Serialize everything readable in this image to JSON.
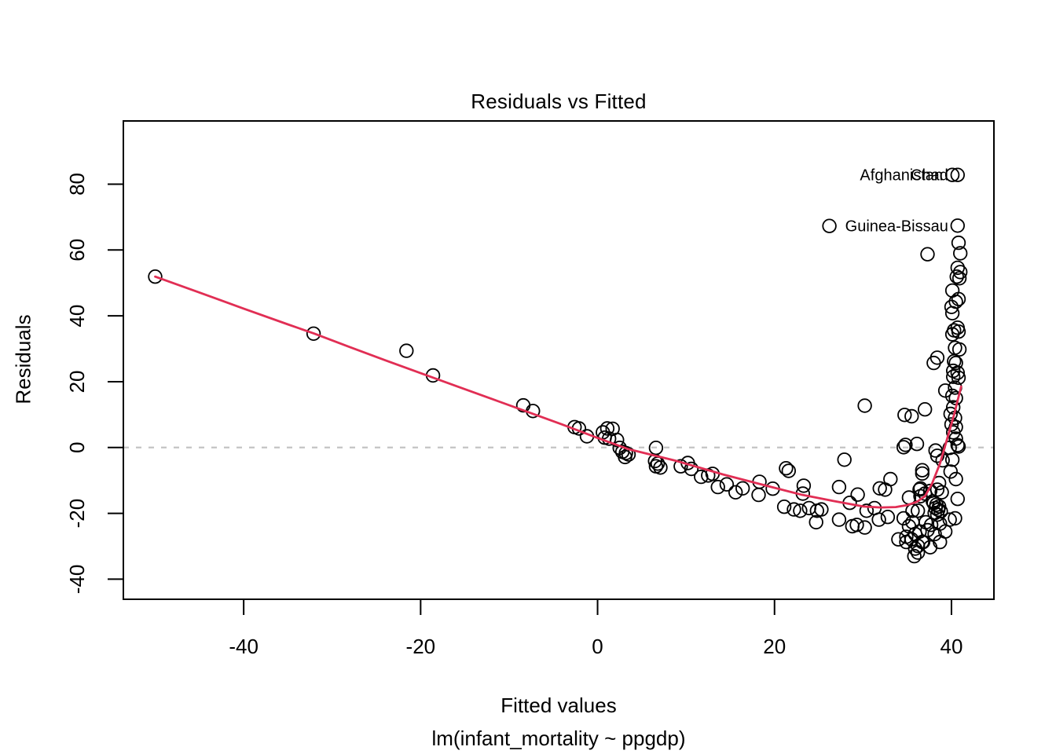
{
  "title": "Residuals vs Fitted",
  "axes": {
    "x": {
      "label": "Fitted values",
      "sublabel": "lm(infant_mortality ~ ppgdp)"
    },
    "y": {
      "label": "Residuals"
    }
  },
  "colors": {
    "point": "#000000",
    "smooth_line": "#e12e54",
    "zero_line": "#c4c4c4",
    "axis": "#000000",
    "background": "#ffffff"
  },
  "chart_data": {
    "type": "scatter",
    "title": "Residuals vs Fitted",
    "xlabel": "Fitted values",
    "ylabel": "Residuals",
    "xlim": [
      -53.6,
      44.8
    ],
    "ylim": [
      -46.1,
      99.2
    ],
    "x_ticks": [
      -40,
      -20,
      0,
      20,
      40
    ],
    "y_ticks": [
      -40,
      -20,
      0,
      20,
      40,
      60,
      80
    ],
    "grid": false,
    "zero_line_y": 0,
    "points": [
      [
        -50.0,
        51.9
      ],
      [
        -32.1,
        34.6
      ],
      [
        -21.6,
        29.4
      ],
      [
        -18.6,
        21.9
      ],
      [
        -8.4,
        12.8
      ],
      [
        -7.3,
        11.1
      ],
      [
        -2.6,
        6.2
      ],
      [
        -2.1,
        5.8
      ],
      [
        -1.2,
        3.4
      ],
      [
        0.6,
        4.6
      ],
      [
        1.1,
        5.8
      ],
      [
        1.7,
        5.7
      ],
      [
        0.8,
        3.0
      ],
      [
        1.3,
        2.7
      ],
      [
        2.2,
        2.3
      ],
      [
        2.5,
        -0.1
      ],
      [
        2.8,
        -1.3
      ],
      [
        3.2,
        -1.7
      ],
      [
        3.5,
        -2.1
      ],
      [
        3.1,
        -2.9
      ],
      [
        6.6,
        -0.1
      ],
      [
        6.5,
        -4.1
      ],
      [
        6.8,
        -4.9
      ],
      [
        6.6,
        -5.7
      ],
      [
        7.1,
        -6.1
      ],
      [
        9.4,
        -5.7
      ],
      [
        10.2,
        -4.7
      ],
      [
        10.6,
        -6.5
      ],
      [
        11.7,
        -8.9
      ],
      [
        12.5,
        -8.5
      ],
      [
        13.0,
        -8.0
      ],
      [
        13.6,
        -12.0
      ],
      [
        14.6,
        -11.2
      ],
      [
        15.6,
        -13.6
      ],
      [
        16.4,
        -12.4
      ],
      [
        18.3,
        -10.4
      ],
      [
        18.2,
        -14.4
      ],
      [
        19.8,
        -12.5
      ],
      [
        21.3,
        -6.3
      ],
      [
        21.6,
        -7.1
      ],
      [
        23.3,
        -11.6
      ],
      [
        23.2,
        -14.0
      ],
      [
        21.1,
        -18.0
      ],
      [
        22.2,
        -18.8
      ],
      [
        22.9,
        -19.2
      ],
      [
        23.9,
        -18.4
      ],
      [
        24.8,
        -19.2
      ],
      [
        24.7,
        -22.7
      ],
      [
        25.3,
        -18.8
      ],
      [
        26.2,
        67.3
      ],
      [
        27.9,
        -3.7
      ],
      [
        27.3,
        -12.0
      ],
      [
        27.3,
        -21.9
      ],
      [
        28.5,
        -16.8
      ],
      [
        29.4,
        -14.3
      ],
      [
        28.8,
        -23.9
      ],
      [
        29.3,
        -23.5
      ],
      [
        30.2,
        12.7
      ],
      [
        30.2,
        -24.3
      ],
      [
        30.4,
        -19.2
      ],
      [
        31.3,
        -18.4
      ],
      [
        31.8,
        -21.9
      ],
      [
        31.9,
        -12.4
      ],
      [
        32.5,
        -12.8
      ],
      [
        33.1,
        -9.6
      ],
      [
        32.8,
        -21.1
      ],
      [
        34.0,
        -27.9
      ],
      [
        34.9,
        -27.1
      ],
      [
        34.6,
        0.1
      ],
      [
        34.8,
        0.8
      ],
      [
        36.1,
        1.1
      ],
      [
        34.7,
        9.9
      ],
      [
        35.5,
        9.5
      ],
      [
        37.0,
        11.6
      ],
      [
        36.7,
        -6.9
      ],
      [
        36.5,
        -12.4
      ],
      [
        35.2,
        -15.2
      ],
      [
        35.6,
        -19.2
      ],
      [
        34.6,
        -21.5
      ],
      [
        35.2,
        -23.9
      ],
      [
        35.9,
        -26.3
      ],
      [
        36.2,
        -29.9
      ],
      [
        36.7,
        -28.7
      ],
      [
        37.6,
        -30.3
      ],
      [
        36.2,
        -31.9
      ],
      [
        35.8,
        -33.0
      ],
      [
        36.7,
        -7.9
      ],
      [
        38.4,
        -2.5
      ],
      [
        39.0,
        -3.9
      ],
      [
        40.1,
        -3.7
      ],
      [
        39.9,
        -7.3
      ],
      [
        40.5,
        -9.6
      ],
      [
        38.6,
        -10.8
      ],
      [
        38.4,
        -12.8
      ],
      [
        38.9,
        -13.6
      ],
      [
        36.4,
        -12.8
      ],
      [
        36.5,
        -14.8
      ],
      [
        37.0,
        -14.0
      ],
      [
        37.6,
        -13.2
      ],
      [
        40.7,
        -15.6
      ],
      [
        37.9,
        -16.4
      ],
      [
        38.0,
        -16.9
      ],
      [
        38.3,
        -17.4
      ],
      [
        38.6,
        -17.9
      ],
      [
        38.2,
        -18.4
      ],
      [
        38.5,
        -18.9
      ],
      [
        38.8,
        -19.4
      ],
      [
        38.1,
        -19.9
      ],
      [
        38.4,
        -20.4
      ],
      [
        36.2,
        -19.2
      ],
      [
        35.6,
        -22.7
      ],
      [
        37.1,
        -22.7
      ],
      [
        37.7,
        -23.5
      ],
      [
        38.7,
        -23.1
      ],
      [
        39.8,
        -21.9
      ],
      [
        40.4,
        -21.5
      ],
      [
        36.4,
        -25.5
      ],
      [
        37.3,
        -25.1
      ],
      [
        38.1,
        -26.3
      ],
      [
        39.3,
        -25.5
      ],
      [
        35.5,
        -27.9
      ],
      [
        34.9,
        -28.7
      ],
      [
        36.8,
        -28.7
      ],
      [
        38.7,
        -28.7
      ],
      [
        35.9,
        -30.7
      ],
      [
        40.1,
        82.8
      ],
      [
        40.7,
        82.8
      ],
      [
        40.7,
        67.4
      ],
      [
        40.8,
        62.2
      ],
      [
        41.0,
        59.0
      ],
      [
        37.3,
        58.7
      ],
      [
        40.7,
        54.6
      ],
      [
        41.0,
        53.3
      ],
      [
        40.6,
        51.9
      ],
      [
        40.9,
        51.4
      ],
      [
        40.1,
        47.7
      ],
      [
        40.8,
        45.1
      ],
      [
        40.5,
        44.3
      ],
      [
        40.0,
        42.7
      ],
      [
        40.1,
        40.8
      ],
      [
        40.7,
        36.4
      ],
      [
        40.3,
        35.6
      ],
      [
        40.8,
        35.2
      ],
      [
        40.1,
        34.4
      ],
      [
        40.4,
        30.3
      ],
      [
        40.9,
        29.8
      ],
      [
        38.4,
        27.3
      ],
      [
        38.0,
        25.7
      ],
      [
        40.3,
        26.2
      ],
      [
        40.5,
        25.7
      ],
      [
        40.2,
        23.3
      ],
      [
        40.7,
        22.7
      ],
      [
        40.2,
        21.5
      ],
      [
        40.8,
        21.2
      ],
      [
        40.4,
        18.2
      ],
      [
        39.3,
        17.3
      ],
      [
        40.1,
        15.7
      ],
      [
        40.5,
        15.0
      ],
      [
        40.2,
        12.2
      ],
      [
        39.9,
        10.2
      ],
      [
        40.4,
        9.0
      ],
      [
        40.0,
        7.0
      ],
      [
        40.5,
        6.2
      ],
      [
        40.2,
        4.6
      ],
      [
        40.5,
        2.7
      ],
      [
        39.8,
        -0.1
      ],
      [
        40.8,
        0.3
      ],
      [
        38.2,
        -0.9
      ],
      [
        40.7,
        0.7
      ]
    ],
    "smooth_line": [
      [
        -50,
        51.9
      ],
      [
        -45,
        47.1
      ],
      [
        -40,
        42.2
      ],
      [
        -35,
        37.4
      ],
      [
        -32,
        34.6
      ],
      [
        -28,
        30.5
      ],
      [
        -24,
        26.5
      ],
      [
        -20,
        22.6
      ],
      [
        -16,
        18.7
      ],
      [
        -12,
        14.8
      ],
      [
        -8,
        10.9
      ],
      [
        -4,
        7.0
      ],
      [
        0,
        2.9
      ],
      [
        3.5,
        -0.5
      ],
      [
        8.8,
        -4.0
      ],
      [
        14.2,
        -8.2
      ],
      [
        19.8,
        -12.1
      ],
      [
        23,
        -14.3
      ],
      [
        26.6,
        -16.2
      ],
      [
        30,
        -17.9
      ],
      [
        32,
        -18.2
      ],
      [
        33.7,
        -18.1
      ],
      [
        35,
        -17.5
      ],
      [
        36.1,
        -16.5
      ],
      [
        37,
        -14.8
      ],
      [
        37.8,
        -11.0
      ],
      [
        38.7,
        -4.9
      ],
      [
        39.5,
        2.5
      ],
      [
        40.3,
        10.0
      ],
      [
        41.1,
        18.5
      ]
    ],
    "labeled_points": [
      {
        "label": "Afghanistan",
        "x": 40.1,
        "y": 82.8
      },
      {
        "label": "Chad",
        "x": 40.7,
        "y": 82.8
      },
      {
        "label": "Guinea-Bissau",
        "x": 40.7,
        "y": 67.4
      }
    ],
    "legend": null
  }
}
